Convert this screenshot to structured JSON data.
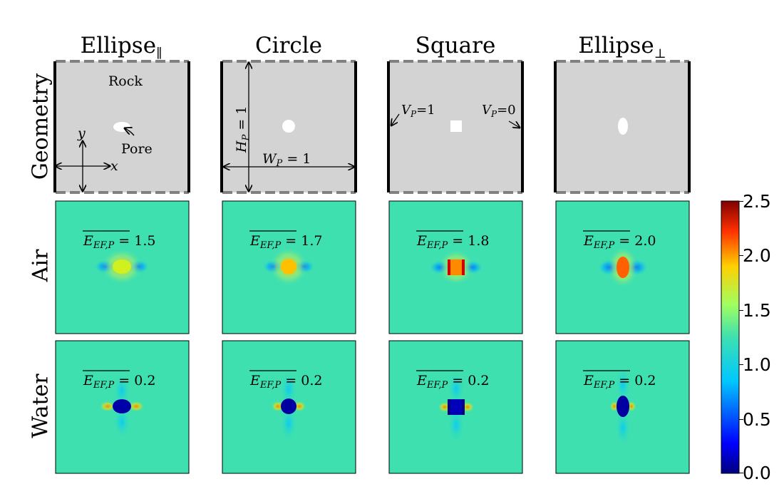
{
  "columns": [
    {
      "title": "Ellipse",
      "title_sub": "∥",
      "shape": "ellipse-h"
    },
    {
      "title": "Circle",
      "title_sub": "",
      "shape": "circle"
    },
    {
      "title": "Square",
      "title_sub": "",
      "shape": "square"
    },
    {
      "title": "Ellipse",
      "title_sub": "⊥",
      "shape": "ellipse-v"
    }
  ],
  "rows": [
    {
      "label": "Geometry"
    },
    {
      "label": "Air"
    },
    {
      "label": "Water"
    }
  ],
  "geometry_annotations": {
    "rock_label": "Rock",
    "pore_label": "Pore",
    "y_axis_label": "y",
    "x_axis_label": "x",
    "height_label": "H",
    "height_sub": "P",
    "height_value": " = 1",
    "width_label": "W",
    "width_sub": "P",
    "width_value": " = 1",
    "v_left_label": "V",
    "v_left_sub": "P",
    "v_left_value": "=1",
    "v_right_label": "V",
    "v_right_sub": "P",
    "v_right_value": "=0"
  },
  "field_annotation": {
    "symbol": "E",
    "symbol_sub": "EF,P",
    "equals": " = "
  },
  "air_values": [
    "1.5",
    "1.7",
    "1.8",
    "2.0"
  ],
  "water_values": [
    "0.2",
    "0.2",
    "0.2",
    "0.2"
  ],
  "colorbar": {
    "min": 0.0,
    "max": 2.5,
    "ticks": [
      "0.0",
      "0.5",
      "1.0",
      "1.5",
      "2.0",
      "2.5"
    ],
    "colormap": "jet"
  },
  "colors": {
    "rock": "#d3d3d3",
    "background_field": "#3ee0b0",
    "boundary_dashed": "#808080",
    "electrode": "#000000"
  }
}
